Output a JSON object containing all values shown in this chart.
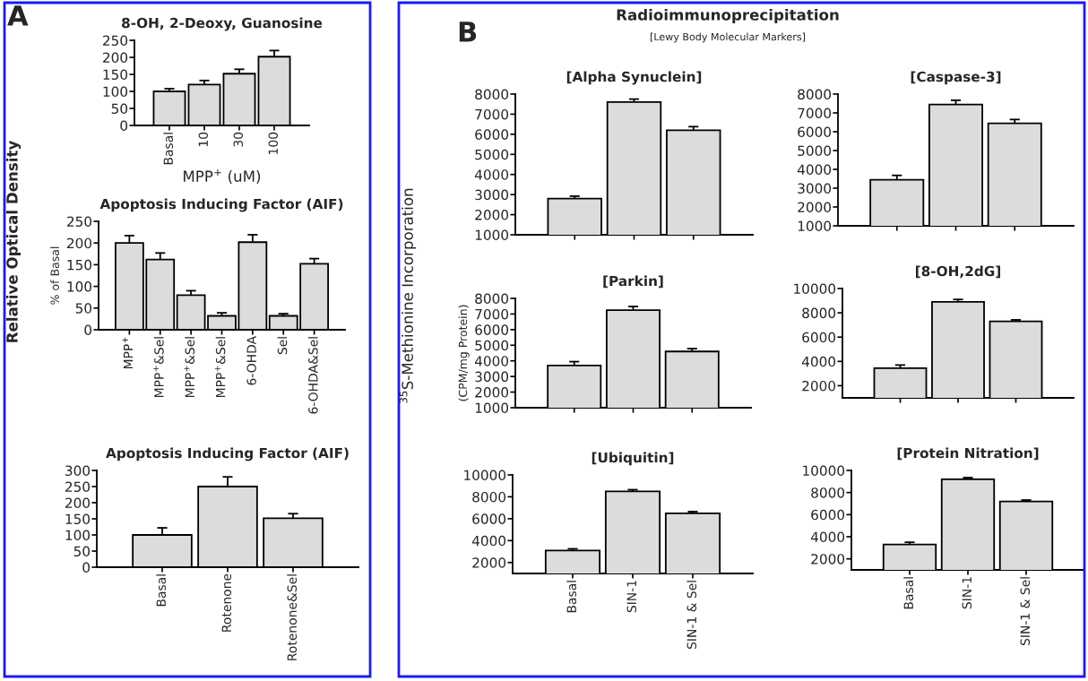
{
  "chart_data": [
    {
      "type": "bar",
      "title": "8-OH, 2-Deoxy, Guanosine",
      "xlabel": "MPP$^{+}$ (uM)",
      "categories": [
        "Basal",
        "10",
        "30",
        "100"
      ],
      "values": [
        100,
        120,
        152,
        202
      ],
      "errors": [
        8,
        12,
        13,
        18
      ],
      "color": "#dcdcdc",
      "ylim": [
        0,
        250
      ],
      "yticks": [
        0,
        50,
        100,
        150,
        200,
        250
      ],
      "grid": false,
      "legend": false,
      "annotations": [
        "A"
      ]
    },
    {
      "type": "bar",
      "title": "Apoptosis Inducing Factor (AIF)",
      "ylabel": "% of Basal",
      "categories": [
        "MPP$^{+}$",
        "MPP$^{+}$&Sel",
        "MPP$^{+}$&Sel",
        "MPP$^{+}$&Sel",
        "6-OHDA",
        "Sel",
        "6-OHDA&Sel"
      ],
      "values": [
        200,
        162,
        80,
        32,
        202,
        32,
        152
      ],
      "errors": [
        17,
        15,
        10,
        7,
        17,
        5,
        12
      ],
      "color": "#dcdcdc",
      "ylim": [
        0,
        250
      ],
      "yticks": [
        0,
        50,
        100,
        150,
        200,
        250
      ],
      "grid": false,
      "legend": false,
      "annotations": [
        "Relative Optical Density"
      ]
    },
    {
      "type": "bar",
      "title": "Apoptosis Inducing Factor (AIF)",
      "categories": [
        "Basal",
        "Rotenone",
        "Rotenone&Sel"
      ],
      "values": [
        100,
        250,
        152
      ],
      "errors": [
        22,
        30,
        14
      ],
      "color": "#dcdcdc",
      "ylim": [
        0,
        300
      ],
      "yticks": [
        0,
        50,
        100,
        150,
        200,
        250,
        300
      ],
      "grid": false,
      "legend": false
    },
    {
      "type": "bar",
      "title": "[Alpha Synuclein]",
      "categories": [
        null,
        null,
        null
      ],
      "values": [
        2800,
        7600,
        6200
      ],
      "errors": [
        120,
        150,
        180
      ],
      "color": "#dcdcdc",
      "ylim": [
        1000,
        8000
      ],
      "yticks": [
        1000,
        2000,
        3000,
        4000,
        5000,
        6000,
        7000,
        8000
      ],
      "grid": false,
      "legend": false,
      "annotations": [
        "B",
        "Radioimmunoprecipitation",
        "[Lewy Body Molecular Markers]"
      ]
    },
    {
      "type": "bar",
      "title": "[Caspase-3]",
      "categories": [
        null,
        null,
        null
      ],
      "values": [
        3450,
        7450,
        6450
      ],
      "errors": [
        230,
        220,
        200
      ],
      "color": "#dcdcdc",
      "ylim": [
        1000,
        8000
      ],
      "yticks": [
        1000,
        2000,
        3000,
        4000,
        5000,
        6000,
        7000,
        8000
      ],
      "grid": false,
      "legend": false
    },
    {
      "type": "bar",
      "title": "[Parkin]",
      "ylabel": "(CPM/mg Protein)",
      "categories": [
        null,
        null,
        null
      ],
      "values": [
        3700,
        7250,
        4600
      ],
      "errors": [
        250,
        230,
        180
      ],
      "color": "#dcdcdc",
      "ylim": [
        1000,
        8000
      ],
      "yticks": [
        1000,
        2000,
        3000,
        4000,
        5000,
        6000,
        7000,
        8000
      ],
      "grid": false,
      "legend": false,
      "annotations": [
        "$^{35}$S-Methionine Incorporation"
      ]
    },
    {
      "type": "bar",
      "title": "[8-OH,2dG]",
      "categories": [
        null,
        null,
        null
      ],
      "values": [
        3450,
        8900,
        7300
      ],
      "errors": [
        250,
        200,
        120
      ],
      "color": "#dcdcdc",
      "ylim": [
        1000,
        10000
      ],
      "yticks": [
        2000,
        4000,
        6000,
        8000,
        10000
      ],
      "grid": false,
      "legend": false
    },
    {
      "type": "bar",
      "title": "[Ubiquitin]",
      "categories": [
        "Basal",
        "SIN-1",
        "SIN-1 & Sel"
      ],
      "values": [
        3100,
        8500,
        6500
      ],
      "errors": [
        150,
        150,
        150
      ],
      "color": "#dcdcdc",
      "ylim": [
        1000,
        10000
      ],
      "yticks": [
        2000,
        4000,
        6000,
        8000,
        10000
      ],
      "grid": false,
      "legend": false
    },
    {
      "type": "bar",
      "title": "[Protein Nitration]",
      "categories": [
        "Basal",
        "SIN-1",
        "SIN-1 & Sel"
      ],
      "values": [
        3300,
        9200,
        7200
      ],
      "errors": [
        200,
        150,
        120
      ],
      "color": "#dcdcdc",
      "ylim": [
        1000,
        10000
      ],
      "yticks": [
        2000,
        4000,
        6000,
        8000,
        10000
      ],
      "grid": false,
      "legend": false
    }
  ]
}
